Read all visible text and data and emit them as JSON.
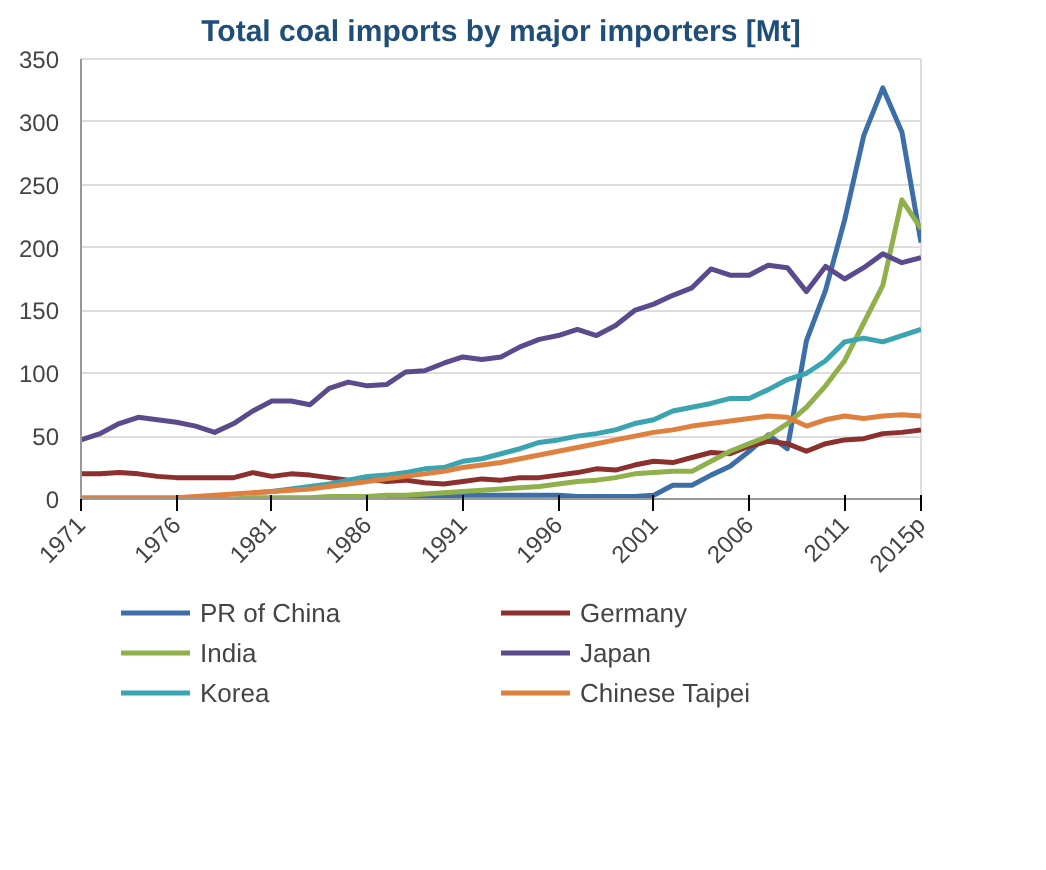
{
  "chart_data": {
    "type": "line",
    "title": "Total coal imports by major importers [Mt]",
    "x": [
      1971,
      1972,
      1973,
      1974,
      1975,
      1976,
      1977,
      1978,
      1979,
      1980,
      1981,
      1982,
      1983,
      1984,
      1985,
      1986,
      1987,
      1988,
      1989,
      1990,
      1991,
      1992,
      1993,
      1994,
      1995,
      1996,
      1997,
      1998,
      1999,
      2000,
      2001,
      2002,
      2003,
      2004,
      2005,
      2006,
      2007,
      2008,
      2009,
      2010,
      2011,
      2012,
      2013,
      2014,
      2015
    ],
    "xlim": [
      1971,
      2015
    ],
    "xticks": [
      1971,
      1976,
      1981,
      1986,
      1991,
      1996,
      2001,
      2006,
      2011,
      {
        "value": 2015,
        "label": "2015p"
      }
    ],
    "ylim": [
      0,
      350
    ],
    "yticks": [
      0,
      50,
      100,
      150,
      200,
      250,
      300,
      350
    ],
    "grid": "y",
    "legend": "bottom",
    "marker": "none",
    "line_style": "solid",
    "series": [
      {
        "name": "PR of China",
        "color": "#3c6fa8",
        "values": [
          null,
          null,
          null,
          null,
          null,
          null,
          null,
          null,
          null,
          null,
          null,
          null,
          null,
          null,
          null,
          null,
          1,
          1,
          2,
          2,
          3,
          3,
          3,
          3,
          3,
          3,
          2,
          2,
          2,
          2,
          3,
          11,
          11,
          19,
          26,
          38,
          51,
          40,
          126,
          166,
          222,
          289,
          327,
          292,
          204
        ]
      },
      {
        "name": "Germany",
        "color": "#8b2f2f",
        "values": [
          20,
          20,
          21,
          20,
          18,
          17,
          17,
          17,
          17,
          21,
          18,
          20,
          19,
          17,
          15,
          16,
          14,
          15,
          13,
          12,
          14,
          16,
          15,
          17,
          17,
          19,
          21,
          24,
          23,
          27,
          30,
          29,
          33,
          37,
          36,
          42,
          46,
          44,
          38,
          44,
          47,
          48,
          52,
          53,
          55
        ]
      },
      {
        "name": "India",
        "color": "#8fb04a",
        "values": [
          null,
          null,
          null,
          null,
          null,
          null,
          0,
          0,
          0,
          1,
          1,
          1,
          1,
          2,
          2,
          2,
          3,
          3,
          4,
          5,
          6,
          7,
          8,
          9,
          10,
          12,
          14,
          15,
          17,
          20,
          21,
          22,
          22,
          30,
          38,
          44,
          50,
          60,
          73,
          90,
          110,
          140,
          170,
          238,
          215
        ]
      },
      {
        "name": "Japan",
        "color": "#5b4a8c",
        "values": [
          47,
          52,
          60,
          65,
          63,
          61,
          58,
          53,
          60,
          70,
          78,
          78,
          75,
          88,
          93,
          90,
          91,
          101,
          102,
          108,
          113,
          111,
          113,
          121,
          127,
          130,
          135,
          130,
          138,
          150,
          155,
          162,
          168,
          183,
          178,
          178,
          186,
          184,
          165,
          185,
          175,
          184,
          195,
          188,
          192
        ]
      },
      {
        "name": "Korea",
        "color": "#3aa5b0",
        "values": [
          null,
          null,
          null,
          null,
          null,
          null,
          null,
          null,
          null,
          5,
          6,
          8,
          10,
          12,
          15,
          18,
          19,
          21,
          24,
          25,
          30,
          32,
          36,
          40,
          45,
          47,
          50,
          52,
          55,
          60,
          63,
          70,
          73,
          76,
          80,
          80,
          87,
          95,
          100,
          110,
          125,
          128,
          125,
          130,
          135
        ]
      },
      {
        "name": "Chinese Taipei",
        "color": "#e0803e",
        "values": [
          1,
          1,
          1,
          1,
          1,
          1,
          2,
          3,
          4,
          5,
          6,
          7,
          8,
          10,
          12,
          14,
          16,
          18,
          20,
          22,
          25,
          27,
          29,
          32,
          35,
          38,
          41,
          44,
          47,
          50,
          53,
          55,
          58,
          60,
          62,
          64,
          66,
          65,
          58,
          63,
          66,
          64,
          66,
          67,
          66
        ]
      }
    ]
  }
}
